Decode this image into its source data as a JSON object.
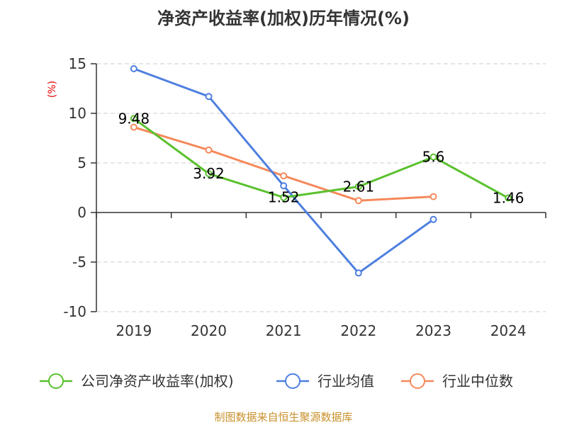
{
  "chart_data": {
    "type": "line",
    "title": "净资产收益率(加权)历年情况(%)",
    "ylabel": "(%)",
    "xlabel": "",
    "categories": [
      "2019",
      "2020",
      "2021",
      "2022",
      "2023",
      "2024"
    ],
    "ylim": [
      -10,
      15
    ],
    "yticks": [
      15,
      10,
      5,
      0,
      -5,
      -10
    ],
    "grid": true,
    "legend_position": "bottom",
    "series": [
      {
        "name": "公司净资产收益率(加权)",
        "color": "#5ac12e",
        "values": [
          9.48,
          3.92,
          1.52,
          2.61,
          5.6,
          1.46
        ],
        "labels": [
          "9.48",
          "3.92",
          "1.52",
          "2.61",
          "5.6",
          "1.46"
        ]
      },
      {
        "name": "行业均值",
        "color": "#4e7fdf",
        "values": [
          14.5,
          11.7,
          2.7,
          -6.1,
          -0.7,
          null
        ]
      },
      {
        "name": "行业中位数",
        "color": "#f5895a",
        "values": [
          8.6,
          6.3,
          3.7,
          1.2,
          1.6,
          null
        ]
      }
    ]
  },
  "source": "制图数据来自恒生聚源数据库"
}
